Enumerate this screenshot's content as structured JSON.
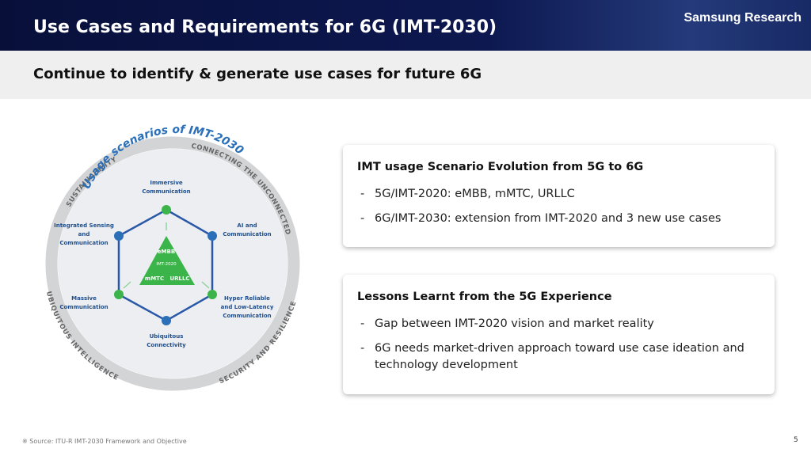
{
  "header": {
    "title": "Use Cases and Requirements for 6G (IMT-2030)",
    "brand": "Samsung Research"
  },
  "subtitle": "Continue to identify & generate use cases for future 6G",
  "diagram": {
    "title": "Usage scenarios of IMT-2030",
    "ring_labels": [
      "SUSTAINABILITY",
      "CONNECTING THE UNCONNECTED",
      "UBIQUITOUS INTELLIGENCE",
      "SECURITY AND RESILIENCE"
    ],
    "nodes": [
      [
        "Immersive",
        "Communication"
      ],
      [
        "AI and",
        "Communication"
      ],
      [
        "Hyper Reliable",
        "and Low-Latency",
        "Communication"
      ],
      [
        "Ubiquitous",
        "Connectivity"
      ],
      [
        "Massive",
        "Communication"
      ],
      [
        "Integrated Sensing",
        "and",
        "Communication"
      ]
    ],
    "center": {
      "top": "eMBB",
      "middle": "IMT-2020",
      "left": "mMTC",
      "right": "URLLC"
    }
  },
  "boxes": [
    {
      "title": "IMT usage Scenario Evolution from 5G to 6G",
      "bullets": [
        [
          "5G/IMT-2020: eMBB, mMTC, URLLC"
        ],
        [
          "6G/IMT-2030:  extension from IMT-2020 and 3 new use cases"
        ]
      ]
    },
    {
      "title": "Lessons Learnt from the 5G Experience",
      "bullets": [
        [
          "Gap between IMT-2020 vision and market reality"
        ],
        [
          "6G needs market-driven approach toward use case ideation and",
          "technology development"
        ]
      ]
    }
  ],
  "footer": {
    "source": "※ Source: ITU-R IMT-2030 Framework and Objective",
    "page": "5"
  }
}
